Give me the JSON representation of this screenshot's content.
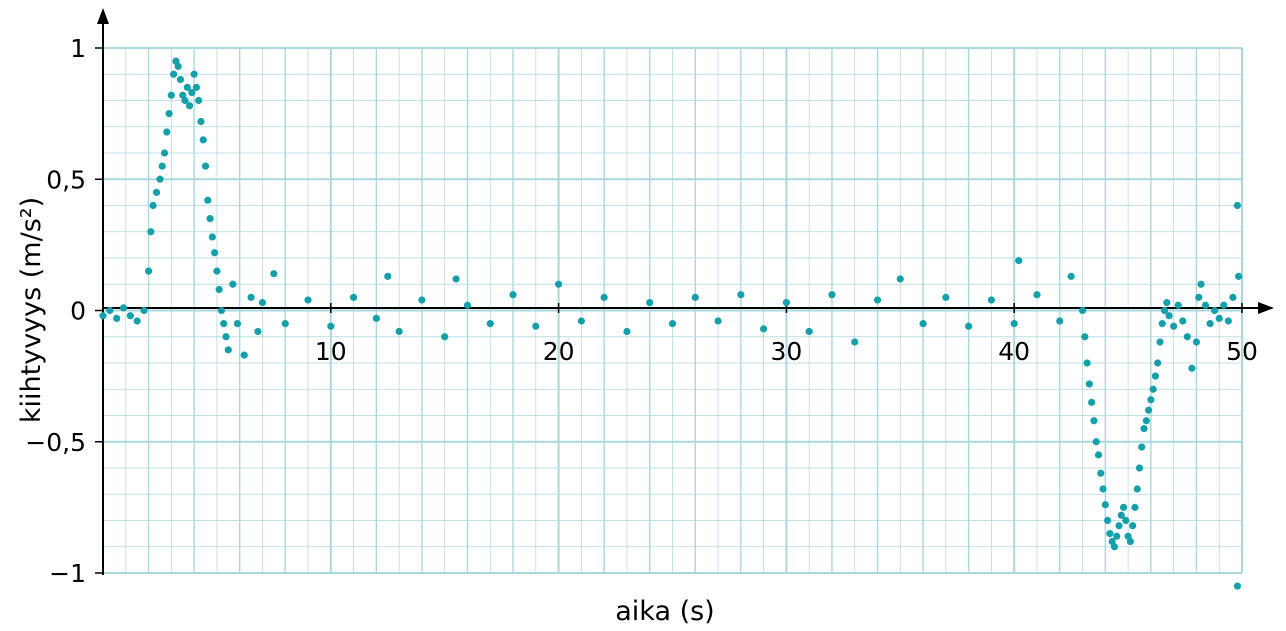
{
  "chart_data": {
    "type": "scatter",
    "xlabel": "aika (s)",
    "ylabel": "kiihtyvyys (m/s²)",
    "xlim": [
      0,
      50
    ],
    "ylim": [
      -1,
      1
    ],
    "xticks": [
      10,
      20,
      30,
      40,
      50
    ],
    "xtick_labels": [
      "10",
      "20",
      "30",
      "40",
      "50"
    ],
    "yticks": [
      1,
      0.5,
      0,
      -0.5,
      -1
    ],
    "ytick_labels": [
      "1",
      "0,5",
      "0",
      "−0,5",
      "−1"
    ],
    "grid": true,
    "colors": {
      "points": "#14a0aa",
      "grid": "#a9d9df",
      "axis": "#000000"
    },
    "points": [
      [
        0.0,
        -0.02
      ],
      [
        0.3,
        0.0
      ],
      [
        0.6,
        -0.03
      ],
      [
        0.9,
        0.01
      ],
      [
        1.2,
        -0.02
      ],
      [
        1.5,
        -0.04
      ],
      [
        1.8,
        0.0
      ],
      [
        2.0,
        0.15
      ],
      [
        2.1,
        0.3
      ],
      [
        2.2,
        0.4
      ],
      [
        2.35,
        0.45
      ],
      [
        2.5,
        0.5
      ],
      [
        2.6,
        0.55
      ],
      [
        2.7,
        0.6
      ],
      [
        2.8,
        0.68
      ],
      [
        2.9,
        0.75
      ],
      [
        3.0,
        0.82
      ],
      [
        3.1,
        0.9
      ],
      [
        3.2,
        0.95
      ],
      [
        3.3,
        0.93
      ],
      [
        3.4,
        0.88
      ],
      [
        3.5,
        0.82
      ],
      [
        3.6,
        0.8
      ],
      [
        3.7,
        0.85
      ],
      [
        3.8,
        0.78
      ],
      [
        3.9,
        0.83
      ],
      [
        4.0,
        0.9
      ],
      [
        4.1,
        0.85
      ],
      [
        4.2,
        0.8
      ],
      [
        4.3,
        0.72
      ],
      [
        4.4,
        0.65
      ],
      [
        4.5,
        0.55
      ],
      [
        4.6,
        0.42
      ],
      [
        4.7,
        0.35
      ],
      [
        4.8,
        0.28
      ],
      [
        4.9,
        0.22
      ],
      [
        5.0,
        0.15
      ],
      [
        5.1,
        0.08
      ],
      [
        5.2,
        0.0
      ],
      [
        5.3,
        -0.05
      ],
      [
        5.4,
        -0.1
      ],
      [
        5.5,
        -0.15
      ],
      [
        5.7,
        0.1
      ],
      [
        5.9,
        -0.05
      ],
      [
        6.2,
        -0.17
      ],
      [
        6.5,
        0.05
      ],
      [
        6.8,
        -0.08
      ],
      [
        7.0,
        0.03
      ],
      [
        7.5,
        0.14
      ],
      [
        8.0,
        -0.05
      ],
      [
        9.0,
        0.04
      ],
      [
        10.0,
        -0.06
      ],
      [
        11.0,
        0.05
      ],
      [
        12.0,
        -0.03
      ],
      [
        12.5,
        0.13
      ],
      [
        13.0,
        -0.08
      ],
      [
        14.0,
        0.04
      ],
      [
        15.0,
        -0.1
      ],
      [
        15.5,
        0.12
      ],
      [
        16.0,
        0.02
      ],
      [
        17.0,
        -0.05
      ],
      [
        18.0,
        0.06
      ],
      [
        19.0,
        -0.06
      ],
      [
        20.0,
        0.1
      ],
      [
        21.0,
        -0.04
      ],
      [
        22.0,
        0.05
      ],
      [
        23.0,
        -0.08
      ],
      [
        24.0,
        0.03
      ],
      [
        25.0,
        -0.05
      ],
      [
        26.0,
        0.05
      ],
      [
        27.0,
        -0.04
      ],
      [
        28.0,
        0.06
      ],
      [
        29.0,
        -0.07
      ],
      [
        30.0,
        0.03
      ],
      [
        31.0,
        -0.08
      ],
      [
        32.0,
        0.06
      ],
      [
        33.0,
        -0.12
      ],
      [
        34.0,
        0.04
      ],
      [
        35.0,
        0.12
      ],
      [
        36.0,
        -0.05
      ],
      [
        37.0,
        0.05
      ],
      [
        38.0,
        -0.06
      ],
      [
        39.0,
        0.04
      ],
      [
        40.0,
        -0.05
      ],
      [
        40.2,
        0.19
      ],
      [
        41.0,
        0.06
      ],
      [
        42.0,
        -0.04
      ],
      [
        42.5,
        0.13
      ],
      [
        43.0,
        0.0
      ],
      [
        43.1,
        -0.1
      ],
      [
        43.2,
        -0.2
      ],
      [
        43.3,
        -0.28
      ],
      [
        43.4,
        -0.35
      ],
      [
        43.5,
        -0.42
      ],
      [
        43.6,
        -0.5
      ],
      [
        43.7,
        -0.55
      ],
      [
        43.8,
        -0.62
      ],
      [
        43.9,
        -0.68
      ],
      [
        44.0,
        -0.74
      ],
      [
        44.1,
        -0.8
      ],
      [
        44.2,
        -0.85
      ],
      [
        44.3,
        -0.88
      ],
      [
        44.4,
        -0.9
      ],
      [
        44.5,
        -0.86
      ],
      [
        44.6,
        -0.82
      ],
      [
        44.7,
        -0.78
      ],
      [
        44.8,
        -0.75
      ],
      [
        44.9,
        -0.8
      ],
      [
        45.0,
        -0.86
      ],
      [
        45.1,
        -0.88
      ],
      [
        45.2,
        -0.82
      ],
      [
        45.3,
        -0.75
      ],
      [
        45.4,
        -0.68
      ],
      [
        45.5,
        -0.6
      ],
      [
        45.6,
        -0.52
      ],
      [
        45.7,
        -0.45
      ],
      [
        45.8,
        -0.42
      ],
      [
        45.9,
        -0.38
      ],
      [
        46.0,
        -0.34
      ],
      [
        46.1,
        -0.3
      ],
      [
        46.2,
        -0.25
      ],
      [
        46.3,
        -0.2
      ],
      [
        46.4,
        -0.12
      ],
      [
        46.5,
        -0.05
      ],
      [
        46.6,
        0.0
      ],
      [
        46.7,
        0.03
      ],
      [
        46.8,
        -0.02
      ],
      [
        47.0,
        -0.06
      ],
      [
        47.2,
        0.02
      ],
      [
        47.4,
        -0.04
      ],
      [
        47.6,
        -0.1
      ],
      [
        47.8,
        -0.22
      ],
      [
        48.0,
        -0.12
      ],
      [
        48.1,
        0.05
      ],
      [
        48.2,
        0.1
      ],
      [
        48.4,
        0.02
      ],
      [
        48.6,
        -0.05
      ],
      [
        48.8,
        0.0
      ],
      [
        49.0,
        -0.03
      ],
      [
        49.2,
        0.02
      ],
      [
        49.4,
        -0.04
      ],
      [
        49.6,
        0.05
      ],
      [
        49.8,
        0.4
      ],
      [
        49.85,
        0.13
      ],
      [
        49.8,
        -1.05
      ]
    ]
  }
}
